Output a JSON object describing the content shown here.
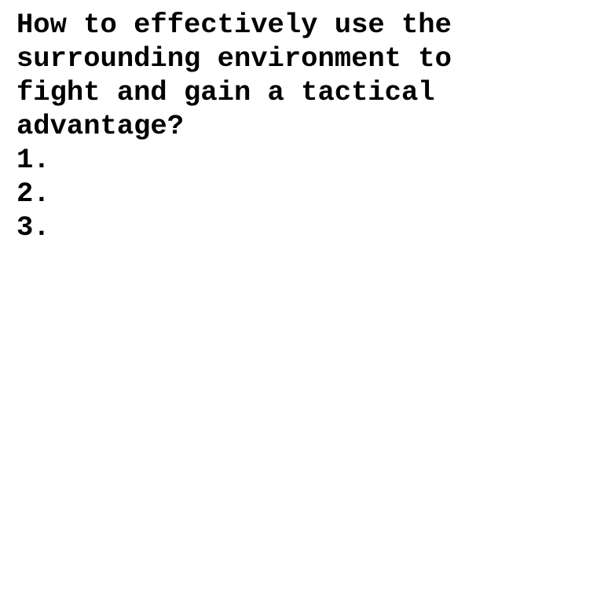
{
  "document": {
    "question_lines": [
      "How to effectively use the",
      "surrounding environment to",
      "fight and gain a tactical",
      "advantage?"
    ],
    "list_items": [
      "1.",
      "2.",
      "3."
    ]
  },
  "colors": {
    "background": "#ffffff",
    "text": "#000000"
  }
}
